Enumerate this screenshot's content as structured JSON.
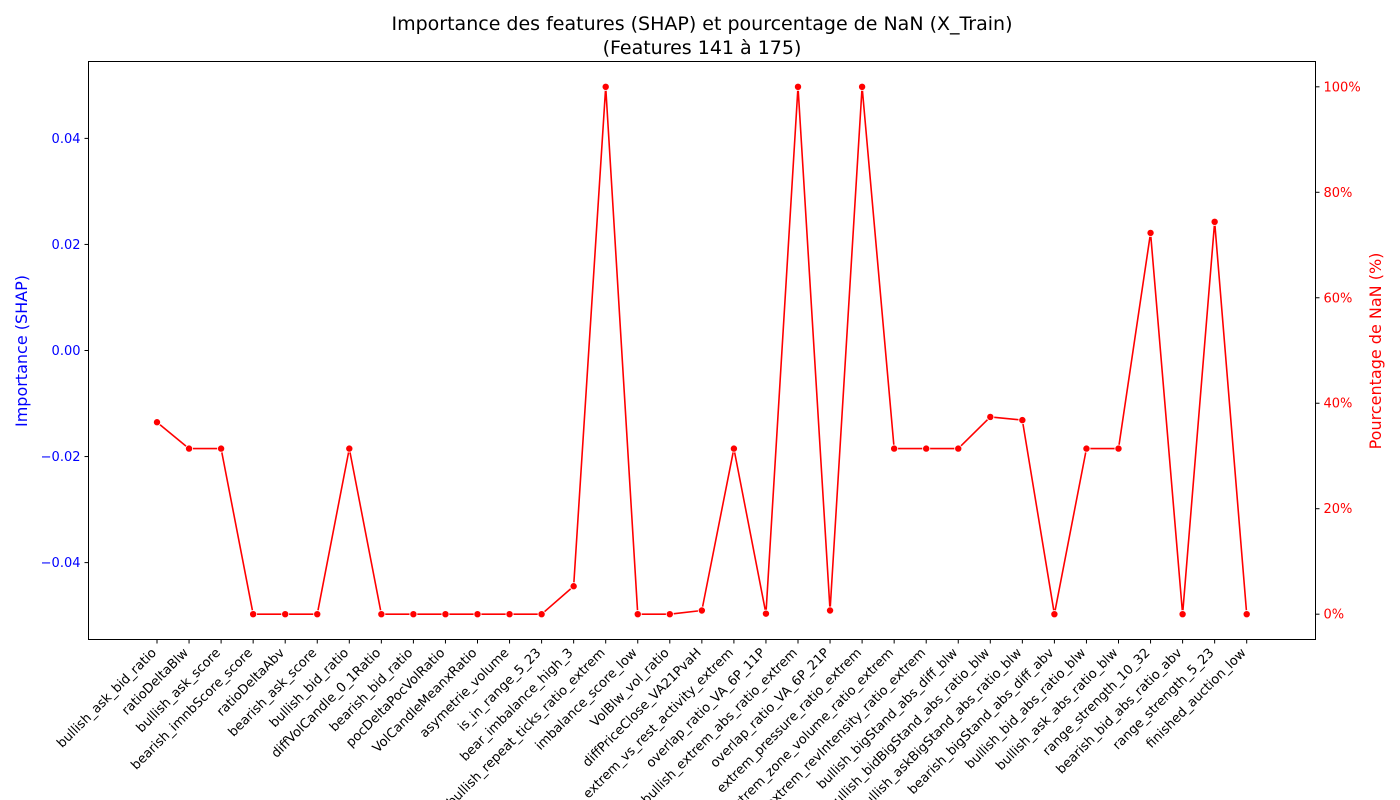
{
  "chart_data": {
    "type": "line",
    "title": "Importance des features (SHAP) et pourcentage de NaN (X_Train)",
    "subtitle": "(Features 141 à 175)",
    "ylabel_left": "Importance (SHAP)",
    "ylabel_right": "Pourcentage de NaN (%)",
    "left_color": "#0000ff",
    "right_color": "#ff0000",
    "left_ylim": [
      -0.0545,
      0.0545
    ],
    "left_ticks": [
      -0.04,
      -0.02,
      0.0,
      0.02,
      0.04
    ],
    "left_tick_labels": [
      "−0.04",
      "−0.02",
      "0.00",
      "0.02",
      "0.04"
    ],
    "right_ylim": [
      -4.8,
      104.8
    ],
    "right_ticks": [
      0,
      20,
      40,
      60,
      80,
      100
    ],
    "right_tick_labels": [
      "0%",
      "20%",
      "40%",
      "60%",
      "80%",
      "100%"
    ],
    "grid": false,
    "categories": [
      "bullish_ask_bid_ratio",
      "ratioDeltaBlw",
      "bullish_ask_score",
      "bearish_imnbScore_score",
      "ratioDeltaAbv",
      "bearish_ask_score",
      "bullish_bid_ratio",
      "diffVolCandle_0_1Ratio",
      "bearish_bid_ratio",
      "pocDeltaPocVolRatio",
      "VolCandleMeanxRatio",
      "asymetrie_volume",
      "is_in_range_5_23",
      "bear_imbalance_high_3",
      "bullish_repeat_ticks_ratio_extrem",
      "imbalance_score_low",
      "VolBlw_vol_ratio",
      "diffPriceClose_VA21PvaH",
      "extrem_vs_rest_activity_extrem",
      "overlap_ratio_VA_6P_11P",
      "bullish_extrem_abs_ratio_extrem",
      "overlap_ratio_VA_6P_21P",
      "extrem_pressure_ratio_extrem",
      "extrem_zone_volume_ratio_extrem",
      "extrem_revIntensity_ratio_extrem",
      "bullish_bigStand_abs_diff_blw",
      "bullish_bidBigStand_abs_ratio_blw",
      "bullish_askBigStand_abs_ratio_blw",
      "bearish_bigStand_abs_diff_abv",
      "bullish_bid_abs_ratio_blw",
      "bullish_ask_abs_ratio_blw",
      "range_strength_10_32",
      "bearish_bid_abs_ratio_abv",
      "range_strength_5_23",
      "finished_auction_low"
    ],
    "series": [
      {
        "name": "",
        "axis": "right",
        "color": "#ff0000",
        "marker": "circle",
        "values": [
          36.4,
          31.4,
          31.4,
          0,
          0,
          0,
          31.4,
          0,
          0,
          0,
          0,
          0,
          0,
          5.3,
          100,
          0,
          0,
          0.7,
          31.4,
          0.1,
          100,
          0.7,
          100,
          31.4,
          31.4,
          31.4,
          37.4,
          36.8,
          0,
          31.4,
          31.4,
          72.3,
          0,
          74.4,
          0
        ]
      }
    ]
  }
}
